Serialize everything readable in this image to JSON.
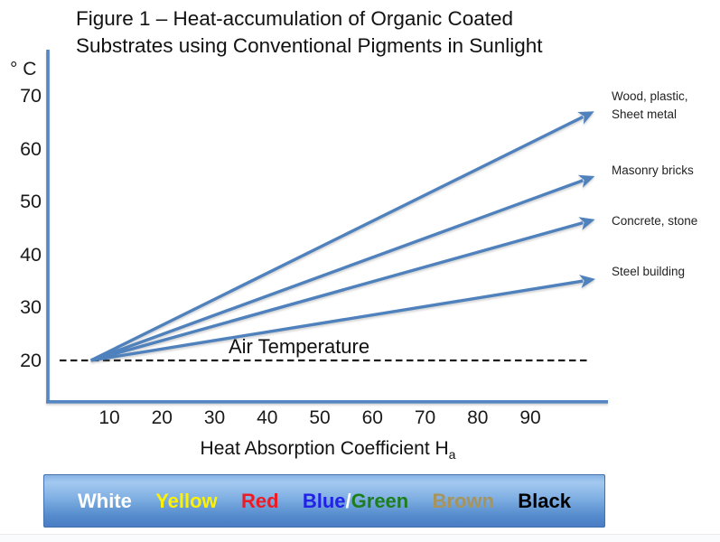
{
  "figure": {
    "title": "Figure 1 – Heat-accumulation of Organic Coated\nSubstrates using Conventional Pigments  in Sunlight"
  },
  "chart_data": {
    "type": "line",
    "title": "Figure 1 – Heat-accumulation of Organic Coated Substrates using Conventional Pigments in Sunlight",
    "xlabel": "Heat Absorption Coefficient Ha",
    "xlabel_main": "Heat Absorption Coefficient H",
    "xlabel_sub": "a",
    "ylabel": "",
    "y_unit": "° C",
    "x_ticks": [
      10,
      20,
      30,
      40,
      50,
      60,
      70,
      80,
      90
    ],
    "y_ticks": [
      70,
      60,
      50,
      40,
      30,
      20
    ],
    "xlim": [
      0,
      105
    ],
    "ylim": [
      15,
      75
    ],
    "grid": false,
    "legend_position": "right",
    "line_color": "#4f81bd",
    "series": [
      {
        "name": "Wood, plastic, Sheet metal",
        "label": "Wood, plastic,\nSheet metal",
        "points": [
          {
            "x": 6.5,
            "y": 20
          },
          {
            "x": 100,
            "y": 66
          }
        ]
      },
      {
        "name": "Masonry bricks",
        "label": "Masonry bricks",
        "points": [
          {
            "x": 6.5,
            "y": 20
          },
          {
            "x": 100,
            "y": 54
          }
        ]
      },
      {
        "name": "Concrete, stone",
        "label": "Concrete, stone",
        "points": [
          {
            "x": 6.5,
            "y": 20
          },
          {
            "x": 100,
            "y": 46
          }
        ]
      },
      {
        "name": "Steel building",
        "label": "Steel building",
        "points": [
          {
            "x": 6.5,
            "y": 20
          },
          {
            "x": 100,
            "y": 35
          }
        ]
      }
    ],
    "reference_line": {
      "label": "Air Temperature",
      "y": 20,
      "style": "dashed"
    }
  },
  "legend_bar": {
    "groups": [
      [
        {
          "label": "White",
          "color": "#ffffff"
        }
      ],
      [
        {
          "label": "Yellow",
          "color": "#fff200"
        }
      ],
      [
        {
          "label": "Red",
          "color": "#ed1c24"
        }
      ],
      [
        {
          "label": "Blue",
          "color": "#2121e8"
        },
        {
          "label": "/",
          "color": "#ffffff"
        },
        {
          "label": "Green",
          "color": "#1e7e1e"
        }
      ],
      [
        {
          "label": "Brown",
          "color": "#a7945c"
        }
      ],
      [
        {
          "label": "Black",
          "color": "#000000"
        }
      ]
    ]
  },
  "colors": {
    "axis": "#5585c2",
    "line": "#4f81bd",
    "dash": "#1f1f1f",
    "bar_border": "#4371ad"
  }
}
